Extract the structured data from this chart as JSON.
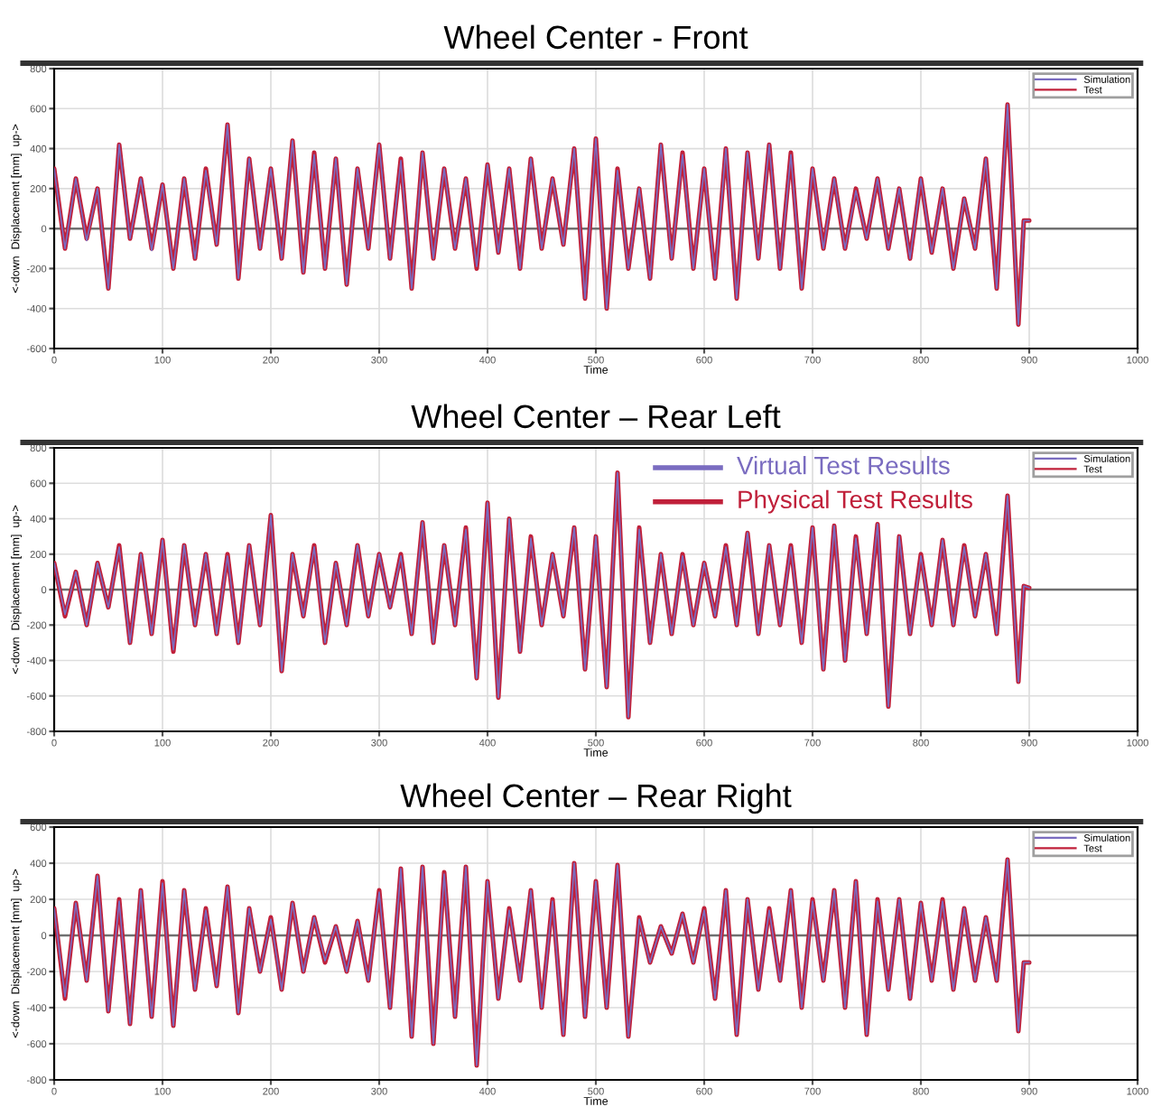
{
  "chart_data": [
    {
      "type": "line",
      "title": "Wheel Center - Front",
      "xlabel": "Time",
      "ylabel": "<-down  Displacement [mm]  up->",
      "x": [
        0,
        10,
        20,
        30,
        40,
        50,
        60,
        70,
        80,
        90,
        100,
        110,
        120,
        130,
        140,
        150,
        160,
        170,
        180,
        190,
        200,
        210,
        220,
        230,
        240,
        250,
        260,
        270,
        280,
        290,
        300,
        310,
        320,
        330,
        340,
        350,
        360,
        370,
        380,
        390,
        400,
        410,
        420,
        430,
        440,
        450,
        460,
        470,
        480,
        490,
        500,
        510,
        520,
        530,
        540,
        550,
        560,
        570,
        580,
        590,
        600,
        610,
        620,
        630,
        640,
        650,
        660,
        670,
        680,
        690,
        700,
        710,
        720,
        730,
        740,
        750,
        760,
        770,
        780,
        790,
        800,
        810,
        820,
        830,
        840,
        850,
        860,
        870,
        880,
        890,
        895,
        900
      ],
      "series": [
        {
          "name": "Simulation",
          "color": "#7a6cc0",
          "values": [
            300,
            -100,
            250,
            -60,
            200,
            -300,
            420,
            -50,
            250,
            -110,
            220,
            -200,
            250,
            -150,
            290,
            -80,
            520,
            -250,
            350,
            -100,
            300,
            -150,
            440,
            -220,
            370,
            -200,
            350,
            -280,
            300,
            -100,
            420,
            -150,
            340,
            -300,
            380,
            -150,
            300,
            -100,
            250,
            -190,
            320,
            -120,
            300,
            -200,
            350,
            -100,
            250,
            -80,
            400,
            -350,
            450,
            -400,
            290,
            -200,
            200,
            -250,
            420,
            -150,
            370,
            -200,
            300,
            -250,
            400,
            -350,
            380,
            -150,
            420,
            -200,
            370,
            -300,
            300,
            -100,
            250,
            -100,
            190,
            -50,
            250,
            -100,
            200,
            -150,
            250,
            -120,
            200,
            -200,
            150,
            -100,
            350,
            -300,
            620,
            -480,
            40,
            40
          ]
        },
        {
          "name": "Test",
          "color": "#c0203a",
          "values": [
            300,
            -100,
            250,
            -50,
            200,
            -300,
            420,
            -50,
            250,
            -100,
            220,
            -200,
            250,
            -150,
            300,
            -80,
            520,
            -250,
            350,
            -100,
            300,
            -150,
            440,
            -220,
            380,
            -200,
            350,
            -280,
            300,
            -100,
            420,
            -150,
            350,
            -300,
            380,
            -150,
            300,
            -100,
            250,
            -200,
            320,
            -120,
            300,
            -200,
            350,
            -100,
            250,
            -80,
            400,
            -350,
            450,
            -400,
            300,
            -200,
            200,
            -250,
            420,
            -150,
            380,
            -200,
            300,
            -250,
            400,
            -350,
            380,
            -150,
            420,
            -200,
            380,
            -300,
            300,
            -100,
            250,
            -100,
            200,
            -50,
            250,
            -100,
            200,
            -150,
            250,
            -120,
            200,
            -200,
            150,
            -100,
            350,
            -300,
            620,
            -480,
            40,
            40
          ]
        }
      ],
      "xlim": [
        0,
        1000
      ],
      "xticks": [
        0,
        100,
        200,
        300,
        400,
        500,
        600,
        700,
        800,
        900,
        1000
      ],
      "ylim": [
        -600,
        800
      ],
      "yticks": [
        -600,
        -400,
        -200,
        0,
        200,
        400,
        600,
        800
      ],
      "ref_lines": [
        {
          "axis": "y",
          "value": 0,
          "color": "#707070"
        }
      ],
      "grid": true,
      "legend": "top right",
      "line_style": "solid"
    },
    {
      "type": "line",
      "title": "Wheel Center – Rear Left",
      "xlabel": "Time",
      "ylabel": "<-down  Displacement [mm]  up->",
      "annotations": [
        "Virtual Test Results",
        "Physical Test Results"
      ],
      "x": [
        0,
        10,
        20,
        30,
        40,
        50,
        60,
        70,
        80,
        90,
        100,
        110,
        120,
        130,
        140,
        150,
        160,
        170,
        180,
        190,
        200,
        210,
        220,
        230,
        240,
        250,
        260,
        270,
        280,
        290,
        300,
        310,
        320,
        330,
        340,
        350,
        360,
        370,
        380,
        390,
        400,
        410,
        420,
        430,
        440,
        450,
        460,
        470,
        480,
        490,
        500,
        510,
        520,
        530,
        540,
        550,
        560,
        570,
        580,
        590,
        600,
        610,
        620,
        630,
        640,
        650,
        660,
        670,
        680,
        690,
        700,
        710,
        720,
        730,
        740,
        750,
        760,
        770,
        780,
        790,
        800,
        810,
        820,
        830,
        840,
        850,
        860,
        870,
        880,
        890,
        895,
        900
      ],
      "series": [
        {
          "name": "Simulation",
          "color": "#7a6cc0",
          "values": [
            150,
            -140,
            100,
            -200,
            150,
            -100,
            240,
            -300,
            200,
            -250,
            280,
            -340,
            250,
            -200,
            200,
            -250,
            190,
            -300,
            250,
            -200,
            420,
            -460,
            200,
            -150,
            240,
            -300,
            150,
            -200,
            250,
            -150,
            200,
            -100,
            190,
            -250,
            380,
            -300,
            250,
            -200,
            340,
            -500,
            490,
            -610,
            400,
            -350,
            290,
            -200,
            200,
            -150,
            350,
            -450,
            300,
            -550,
            660,
            -720,
            340,
            -300,
            200,
            -250,
            190,
            -200,
            150,
            -150,
            240,
            -200,
            320,
            -250,
            250,
            -200,
            240,
            -300,
            350,
            -450,
            360,
            -400,
            290,
            -250,
            370,
            -660,
            300,
            -250,
            190,
            -200,
            280,
            -200,
            240,
            -150,
            200,
            -250,
            530,
            -520,
            20,
            10
          ]
        },
        {
          "name": "Test",
          "color": "#c0203a",
          "values": [
            150,
            -150,
            100,
            -200,
            150,
            -100,
            250,
            -300,
            200,
            -250,
            280,
            -350,
            250,
            -200,
            200,
            -250,
            200,
            -300,
            250,
            -200,
            420,
            -460,
            200,
            -150,
            250,
            -300,
            150,
            -200,
            250,
            -150,
            200,
            -100,
            200,
            -250,
            380,
            -300,
            250,
            -200,
            350,
            -500,
            490,
            -610,
            400,
            -350,
            300,
            -200,
            200,
            -150,
            350,
            -450,
            300,
            -550,
            660,
            -720,
            350,
            -300,
            200,
            -250,
            200,
            -200,
            150,
            -150,
            250,
            -200,
            320,
            -250,
            250,
            -200,
            250,
            -300,
            350,
            -450,
            360,
            -400,
            300,
            -250,
            370,
            -660,
            300,
            -250,
            200,
            -200,
            280,
            -200,
            250,
            -150,
            200,
            -250,
            530,
            -520,
            20,
            10
          ]
        }
      ],
      "xlim": [
        0,
        1000
      ],
      "xticks": [
        0,
        100,
        200,
        300,
        400,
        500,
        600,
        700,
        800,
        900,
        1000
      ],
      "ylim": [
        -800,
        800
      ],
      "yticks": [
        -800,
        -600,
        -400,
        -200,
        0,
        200,
        400,
        600,
        800
      ],
      "ref_lines": [
        {
          "axis": "y",
          "value": 0,
          "color": "#707070"
        }
      ],
      "grid": true,
      "legend": "top right",
      "line_style": "solid"
    },
    {
      "type": "line",
      "title": "Wheel Center – Rear Right",
      "xlabel": "Time",
      "ylabel": "<-down  Displacement [mm]  up->",
      "x": [
        0,
        10,
        20,
        30,
        40,
        50,
        60,
        70,
        80,
        90,
        100,
        110,
        120,
        130,
        140,
        150,
        160,
        170,
        180,
        190,
        200,
        210,
        220,
        230,
        240,
        250,
        260,
        270,
        280,
        290,
        300,
        310,
        320,
        330,
        340,
        350,
        360,
        370,
        380,
        390,
        400,
        410,
        420,
        430,
        440,
        450,
        460,
        470,
        480,
        490,
        500,
        510,
        520,
        530,
        540,
        550,
        560,
        570,
        580,
        590,
        600,
        610,
        620,
        630,
        640,
        650,
        660,
        670,
        680,
        690,
        700,
        710,
        720,
        730,
        740,
        750,
        760,
        770,
        780,
        790,
        800,
        810,
        820,
        830,
        840,
        850,
        860,
        870,
        880,
        890,
        895,
        900
      ],
      "series": [
        {
          "name": "Simulation",
          "color": "#7a6cc0",
          "values": [
            150,
            -340,
            180,
            -250,
            330,
            -420,
            190,
            -490,
            250,
            -450,
            290,
            -500,
            250,
            -300,
            140,
            -280,
            270,
            -430,
            150,
            -200,
            90,
            -300,
            180,
            -200,
            100,
            -140,
            50,
            -200,
            80,
            -250,
            240,
            -400,
            370,
            -560,
            380,
            -600,
            340,
            -450,
            380,
            -720,
            300,
            -350,
            140,
            -250,
            250,
            -400,
            190,
            -550,
            400,
            -450,
            300,
            -400,
            390,
            -560,
            90,
            -150,
            50,
            -100,
            120,
            -150,
            140,
            -350,
            250,
            -550,
            200,
            -300,
            140,
            -250,
            250,
            -400,
            190,
            -250,
            250,
            -400,
            300,
            -550,
            190,
            -300,
            200,
            -350,
            180,
            -250,
            190,
            -300,
            150,
            -250,
            100,
            -250,
            420,
            -530,
            -150,
            -150
          ]
        },
        {
          "name": "Test",
          "color": "#c0203a",
          "values": [
            150,
            -350,
            180,
            -250,
            330,
            -420,
            200,
            -490,
            250,
            -450,
            300,
            -500,
            250,
            -300,
            150,
            -280,
            270,
            -430,
            150,
            -200,
            100,
            -300,
            180,
            -200,
            100,
            -150,
            50,
            -200,
            80,
            -250,
            250,
            -400,
            370,
            -560,
            380,
            -600,
            350,
            -450,
            380,
            -720,
            300,
            -350,
            150,
            -250,
            250,
            -400,
            200,
            -550,
            400,
            -450,
            300,
            -400,
            390,
            -560,
            100,
            -150,
            50,
            -100,
            120,
            -150,
            150,
            -350,
            250,
            -550,
            200,
            -300,
            150,
            -250,
            250,
            -400,
            200,
            -250,
            250,
            -400,
            300,
            -550,
            200,
            -300,
            200,
            -350,
            180,
            -250,
            200,
            -300,
            150,
            -250,
            100,
            -250,
            420,
            -530,
            -150,
            -150
          ]
        }
      ],
      "xlim": [
        0,
        1000
      ],
      "xticks": [
        0,
        100,
        200,
        300,
        400,
        500,
        600,
        700,
        800,
        900,
        1000
      ],
      "ylim": [
        -800,
        600
      ],
      "yticks": [
        -800,
        -600,
        -400,
        -200,
        0,
        200,
        400,
        600
      ],
      "ref_lines": [
        {
          "axis": "y",
          "value": 0,
          "color": "#707070"
        }
      ],
      "grid": true,
      "legend": "top right",
      "line_style": "solid"
    }
  ]
}
